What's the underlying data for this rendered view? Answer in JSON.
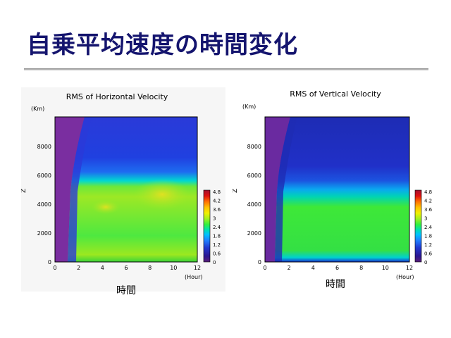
{
  "slide": {
    "title": "自乗平均速度の時間変化"
  },
  "colorbar": {
    "ticks": [
      "4.8",
      "4.2",
      "3.6",
      "3",
      "2.4",
      "1.8",
      "1.2",
      "0.6",
      "0"
    ],
    "colors": [
      "#5a1e78",
      "#6a0d86",
      "#2a1590",
      "#2038d0",
      "#1f7fff",
      "#00c0ff",
      "#00e0b0",
      "#30f040",
      "#a0f020",
      "#f0f000",
      "#ffc000",
      "#ff7000",
      "#e01010",
      "#a01030"
    ]
  },
  "chart_data": [
    {
      "type": "heatmap",
      "title": "RMS of Horizontal Velocity",
      "xlabel": "(Hour)",
      "ylabel": "Z",
      "yunit": "(Km)",
      "caption": "時間",
      "x_ticks": [
        0,
        2,
        4,
        6,
        8,
        10,
        12
      ],
      "y_ticks": [
        0,
        2000,
        4000,
        6000,
        8000
      ],
      "xlim": [
        0,
        12
      ],
      "ylim": [
        0,
        10000
      ],
      "colorbar_range": [
        0,
        4.8
      ],
      "layers": [
        {
          "z_bottom": 0,
          "z_top": 9800,
          "value_approx": 0.9
        },
        {
          "z_bottom": 5000,
          "z_top": 6200,
          "value_approx": 1.5
        },
        {
          "z_bottom": 0,
          "z_top": 5000,
          "value_approx": 2.7
        },
        {
          "z_bottom": 2500,
          "z_top": 4800,
          "value_approx": 3.1
        }
      ]
    },
    {
      "type": "heatmap",
      "title": "RMS of Vertical Velocity",
      "xlabel": "(Hour)",
      "ylabel": "Z",
      "yunit": "(Km)",
      "caption": "時間",
      "x_ticks": [
        0,
        2,
        4,
        6,
        8,
        10,
        12
      ],
      "y_ticks": [
        0,
        2000,
        4000,
        6000,
        8000
      ],
      "xlim": [
        0,
        12
      ],
      "ylim": [
        0,
        10000
      ],
      "colorbar_range": [
        0,
        4.8
      ],
      "layers": [
        {
          "z_bottom": 0,
          "z_top": 9800,
          "value_approx": 0.3
        },
        {
          "z_bottom": 4500,
          "z_top": 5600,
          "value_approx": 1.2
        },
        {
          "z_bottom": 200,
          "z_top": 4500,
          "value_approx": 2.1
        }
      ]
    }
  ]
}
